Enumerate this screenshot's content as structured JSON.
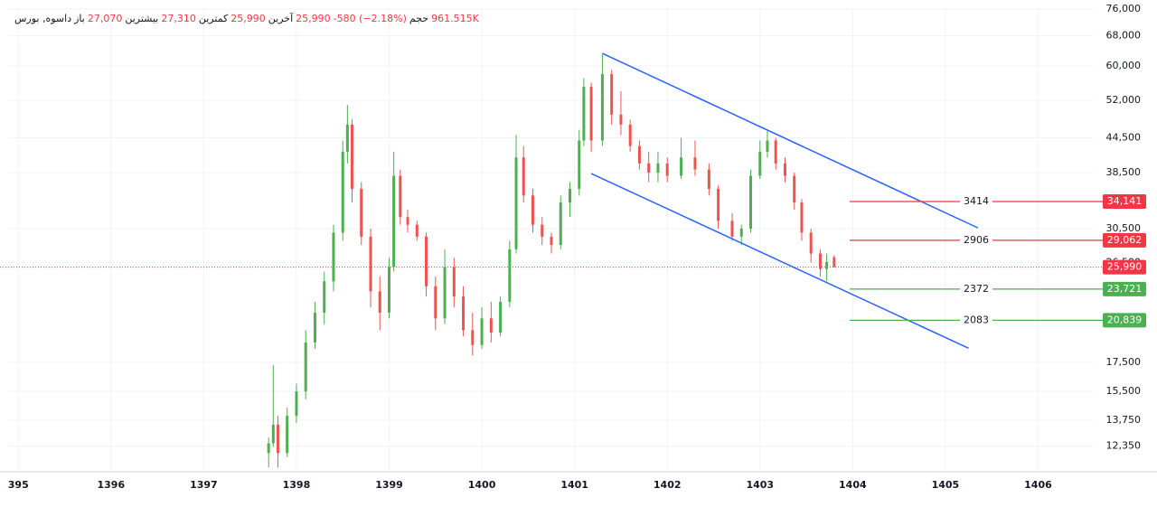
{
  "header": {
    "symbol": "داسوه, بورس",
    "open_label": "باز",
    "open": "27,070",
    "high_label": "بیشترین",
    "high": "27,310",
    "low_label": "کمترین",
    "low": "25,990",
    "last_label": "آخرین",
    "last": "25,990",
    "change": "-580 (−2.18%)",
    "volume_label": "حجم",
    "volume": "961.515K"
  },
  "chart_data": {
    "type": "candlestick",
    "log_scale": true,
    "grid": true,
    "up_color": "#4caf50",
    "down_color": "#ef5350",
    "xlim": [
      1394.9,
      1406.6
    ],
    "xticks": [
      {
        "value": 1395,
        "label": "395"
      },
      1396,
      1397,
      1398,
      1399,
      1400,
      1401,
      1402,
      1403,
      1404,
      1405,
      1406
    ],
    "ylim": [
      11100,
      76000
    ],
    "yticks": [
      {
        "value": 12350,
        "label": "12,350"
      },
      {
        "value": 13750,
        "label": "13,750"
      },
      {
        "value": 15500,
        "label": "15,500"
      },
      {
        "value": 17500,
        "label": "17,500"
      },
      {
        "value": 26500,
        "label": "26,500"
      },
      {
        "value": 30500,
        "label": "30,500"
      },
      {
        "value": 38500,
        "label": "38,500"
      },
      {
        "value": 44500,
        "label": "44,500"
      },
      {
        "value": 52000,
        "label": "52,000"
      },
      {
        "value": 60000,
        "label": "60,000"
      },
      {
        "value": 68000,
        "label": "68,000"
      },
      {
        "value": 76000,
        "label": "76,000"
      }
    ],
    "candles": {
      "x": [
        1397.7,
        1397.75,
        1397.8,
        1397.9,
        1398.0,
        1398.1,
        1398.2,
        1398.3,
        1398.4,
        1398.5,
        1398.55,
        1398.6,
        1398.7,
        1398.8,
        1398.9,
        1399.0,
        1399.05,
        1399.12,
        1399.2,
        1399.3,
        1399.4,
        1399.5,
        1399.6,
        1399.7,
        1399.8,
        1399.9,
        1400.0,
        1400.1,
        1400.2,
        1400.3,
        1400.37,
        1400.45,
        1400.55,
        1400.65,
        1400.75,
        1400.85,
        1400.95,
        1401.05,
        1401.1,
        1401.18,
        1401.3,
        1401.4,
        1401.5,
        1401.6,
        1401.7,
        1401.8,
        1401.9,
        1402.0,
        1402.15,
        1402.3,
        1402.45,
        1402.55,
        1402.7,
        1402.8,
        1402.9,
        1403.0,
        1403.08,
        1403.17,
        1403.27,
        1403.37,
        1403.45,
        1403.55,
        1403.65,
        1403.72,
        1403.8
      ],
      "open": [
        12000,
        12500,
        13500,
        12000,
        14000,
        15500,
        19000,
        21500,
        24500,
        30000,
        42000,
        47000,
        36000,
        29500,
        23500,
        21500,
        26000,
        38000,
        32000,
        31000,
        29500,
        24000,
        21000,
        26000,
        23000,
        20000,
        18800,
        21000,
        19800,
        22500,
        28000,
        41000,
        35000,
        31000,
        29500,
        28500,
        34000,
        36000,
        44000,
        55000,
        44000,
        58000,
        49000,
        47000,
        43000,
        40000,
        38500,
        40000,
        38000,
        41000,
        39000,
        36000,
        31500,
        29500,
        30500,
        38000,
        42000,
        44000,
        40000,
        38000,
        34000,
        30000,
        27500,
        25800,
        27070
      ],
      "high": [
        12800,
        17300,
        14000,
        14500,
        16000,
        20000,
        22500,
        25500,
        31000,
        44000,
        51000,
        48000,
        37000,
        30500,
        25000,
        27000,
        42000,
        39000,
        33000,
        31500,
        30000,
        25000,
        28000,
        27000,
        24000,
        21500,
        22000,
        22500,
        23000,
        29000,
        45000,
        43000,
        36000,
        32000,
        30000,
        35000,
        37000,
        46000,
        57000,
        56000,
        63000,
        59000,
        54000,
        48000,
        44000,
        42000,
        42000,
        41000,
        44500,
        44000,
        40000,
        36500,
        32500,
        31000,
        39000,
        44000,
        46000,
        44500,
        41000,
        38500,
        34500,
        30500,
        28000,
        27500,
        27310
      ],
      "low": [
        11300,
        12300,
        11300,
        11800,
        13600,
        15000,
        18500,
        20500,
        23500,
        29000,
        40000,
        34000,
        28500,
        22000,
        20000,
        21000,
        25500,
        31000,
        30000,
        29000,
        23000,
        20000,
        20500,
        22000,
        19500,
        18000,
        18500,
        19000,
        19500,
        22000,
        27500,
        34000,
        30000,
        28500,
        27500,
        28000,
        32000,
        35000,
        43000,
        42000,
        43000,
        47000,
        45000,
        42000,
        39000,
        37000,
        37000,
        37000,
        37500,
        38000,
        35000,
        30500,
        29000,
        28500,
        30000,
        37500,
        41000,
        39000,
        37000,
        33000,
        29000,
        26500,
        25000,
        24500,
        25990
      ],
      "close": [
        12500,
        13500,
        12000,
        14000,
        15500,
        19000,
        21500,
        24500,
        30000,
        42000,
        47000,
        36000,
        29500,
        23500,
        21500,
        26000,
        38000,
        32000,
        31000,
        29500,
        24000,
        21000,
        26000,
        23000,
        20000,
        18800,
        21000,
        19800,
        22500,
        28000,
        41000,
        35000,
        31000,
        29500,
        28500,
        34000,
        36000,
        44000,
        55000,
        44000,
        58000,
        49000,
        47000,
        43000,
        40000,
        38500,
        40000,
        38000,
        41000,
        39000,
        36000,
        31500,
        29500,
        30500,
        38000,
        42000,
        44000,
        40000,
        38000,
        34000,
        30000,
        27500,
        25800,
        26570,
        25990
      ]
    },
    "current_price": {
      "value": 25990,
      "label": "25,990",
      "color": "#f23645"
    },
    "levels": [
      {
        "name": "3414",
        "value": 34141,
        "value_label": "34,141",
        "color": "#f23645"
      },
      {
        "name": "2906",
        "value": 29062,
        "value_label": "29,062",
        "color": "#f23645"
      },
      {
        "name": "2372",
        "value": 23721,
        "value_label": "23,721",
        "color": "#4caf50"
      },
      {
        "name": "2083",
        "value": 20839,
        "value_label": "20,839",
        "color": "#4caf50"
      }
    ],
    "trendlines": [
      {
        "color": "#2962ff",
        "points": [
          [
            1401.3,
            63200
          ],
          [
            1405.35,
            30600
          ]
        ]
      },
      {
        "color": "#2962ff",
        "points": [
          [
            1401.18,
            38350
          ],
          [
            1405.25,
            18550
          ]
        ]
      }
    ]
  }
}
